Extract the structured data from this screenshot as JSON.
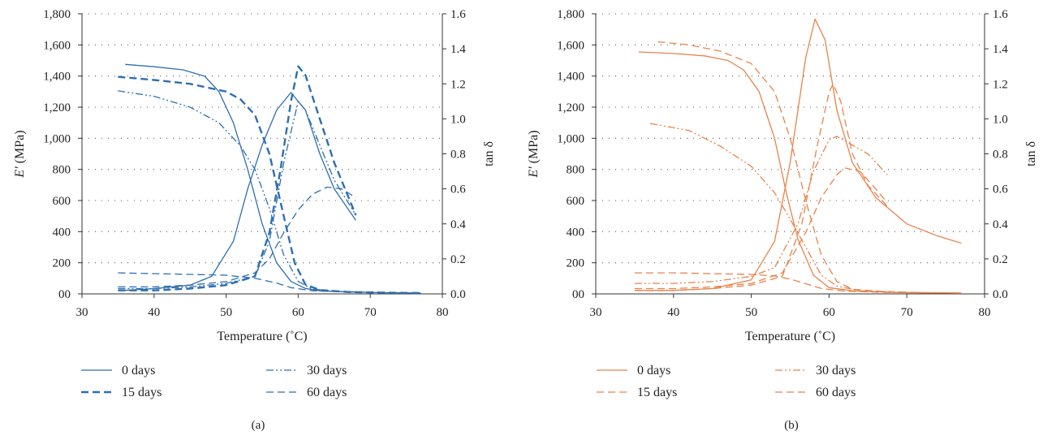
{
  "chart_data": [
    {
      "type": "line",
      "panel_label": "(a)",
      "color": "#2e6fb0",
      "xlabel": "Temperature (˚C)",
      "ylabel_main": "E′",
      "ylabel_unit": " (MPa)",
      "y2label": "tan δ",
      "xlim": [
        30,
        80
      ],
      "ylim": [
        0,
        1800
      ],
      "y2lim": [
        0,
        1.6
      ],
      "xticks": [
        "30",
        "40",
        "50",
        "60",
        "70",
        "80"
      ],
      "yticks": [
        "00",
        "200",
        "400",
        "600",
        "800",
        "1,000",
        "1,200",
        "1,400",
        "1,600",
        "1,800"
      ],
      "y2ticks": [
        "0.0",
        "0.2",
        "0.4",
        "0.6",
        "0.8",
        "1.0",
        "1.2",
        "1.4",
        "1.6"
      ],
      "grid": true,
      "legend_position": "bottom",
      "series": [
        {
          "name": "0 days",
          "style": "solid",
          "modulus": [
            [
              36,
              1475
            ],
            [
              40,
              1460
            ],
            [
              44,
              1440
            ],
            [
              47,
              1400
            ],
            [
              49,
              1300
            ],
            [
              51,
              1100
            ],
            [
              53,
              800
            ],
            [
              55,
              450
            ],
            [
              57,
              200
            ],
            [
              59,
              80
            ],
            [
              61,
              35
            ],
            [
              63,
              20
            ],
            [
              67,
              12
            ],
            [
              72,
              8
            ],
            [
              77,
              5
            ]
          ],
          "tan_delta": [
            [
              36,
              0.02
            ],
            [
              40,
              0.03
            ],
            [
              45,
              0.05
            ],
            [
              48,
              0.1
            ],
            [
              51,
              0.3
            ],
            [
              53,
              0.6
            ],
            [
              55,
              0.85
            ],
            [
              57,
              1.05
            ],
            [
              59,
              1.15
            ],
            [
              61,
              1.05
            ],
            [
              63,
              0.8
            ],
            [
              65,
              0.6
            ],
            [
              68,
              0.42
            ]
          ]
        },
        {
          "name": "15 days",
          "style": "dash-thick",
          "modulus": [
            [
              35,
              1395
            ],
            [
              40,
              1375
            ],
            [
              45,
              1350
            ],
            [
              48,
              1320
            ],
            [
              50,
              1300
            ],
            [
              52,
              1250
            ],
            [
              54,
              1150
            ],
            [
              56,
              900
            ],
            [
              58,
              500
            ],
            [
              59.5,
              200
            ],
            [
              61,
              60
            ],
            [
              63,
              25
            ],
            [
              67,
              12
            ],
            [
              72,
              8
            ],
            [
              77,
              5
            ]
          ],
          "tan_delta": [
            [
              35,
              0.02
            ],
            [
              40,
              0.02
            ],
            [
              45,
              0.03
            ],
            [
              50,
              0.05
            ],
            [
              54,
              0.1
            ],
            [
              56,
              0.35
            ],
            [
              57.5,
              0.7
            ],
            [
              59,
              1.1
            ],
            [
              60,
              1.3
            ],
            [
              61,
              1.25
            ],
            [
              63,
              1.0
            ],
            [
              65,
              0.75
            ],
            [
              68,
              0.45
            ]
          ]
        },
        {
          "name": "30 days",
          "style": "dashdot",
          "modulus": [
            [
              35,
              1305
            ],
            [
              40,
              1270
            ],
            [
              45,
              1200
            ],
            [
              49,
              1100
            ],
            [
              52,
              950
            ],
            [
              54,
              800
            ],
            [
              56,
              550
            ],
            [
              58,
              250
            ],
            [
              60,
              80
            ],
            [
              62,
              30
            ],
            [
              66,
              15
            ],
            [
              72,
              8
            ],
            [
              77,
              5
            ]
          ],
          "tan_delta": [
            [
              35,
              0.03
            ],
            [
              40,
              0.03
            ],
            [
              45,
              0.04
            ],
            [
              50,
              0.06
            ],
            [
              54,
              0.1
            ],
            [
              56,
              0.3
            ],
            [
              58,
              0.75
            ],
            [
              60,
              1.1
            ],
            [
              61,
              1.05
            ],
            [
              63,
              0.85
            ],
            [
              65,
              0.65
            ],
            [
              68,
              0.45
            ]
          ]
        },
        {
          "name": "60 days",
          "style": "dash-thin",
          "modulus": [
            [
              35,
              135
            ],
            [
              40,
              130
            ],
            [
              45,
              125
            ],
            [
              50,
              120
            ],
            [
              54,
              100
            ],
            [
              57,
              70
            ],
            [
              59,
              40
            ],
            [
              62,
              20
            ],
            [
              67,
              12
            ],
            [
              72,
              8
            ],
            [
              77,
              5
            ]
          ],
          "tan_delta": [
            [
              35,
              0.04
            ],
            [
              40,
              0.04
            ],
            [
              45,
              0.05
            ],
            [
              50,
              0.07
            ],
            [
              54,
              0.12
            ],
            [
              56,
              0.2
            ],
            [
              58,
              0.35
            ],
            [
              60,
              0.48
            ],
            [
              62,
              0.57
            ],
            [
              64,
              0.61
            ],
            [
              66,
              0.6
            ],
            [
              68,
              0.55
            ]
          ]
        }
      ],
      "legend": [
        "0 days",
        "15 days",
        "30 days",
        "60 days"
      ]
    },
    {
      "type": "line",
      "panel_label": "(b)",
      "color": "#e8834a",
      "xlabel": "Temperature (˚C)",
      "ylabel_main": "E′",
      "ylabel_unit": " (MPa)",
      "y2label": "tan δ",
      "xlim": [
        30,
        80
      ],
      "ylim": [
        0,
        1800
      ],
      "y2lim": [
        0,
        1.6
      ],
      "xticks": [
        "30",
        "40",
        "50",
        "60",
        "70",
        "80"
      ],
      "yticks": [
        "00",
        "200",
        "400",
        "600",
        "800",
        "1,000",
        "1,200",
        "1,400",
        "1,600",
        "1,800"
      ],
      "y2ticks": [
        "0.0",
        "0.2",
        "0.4",
        "0.6",
        "0.8",
        "1.0",
        "1.2",
        "1.4",
        "1.6"
      ],
      "grid": true,
      "legend_position": "bottom",
      "series": [
        {
          "name": "0 days",
          "style": "solid",
          "modulus": [
            [
              35.5,
              1555
            ],
            [
              40,
              1545
            ],
            [
              44,
              1530
            ],
            [
              47,
              1500
            ],
            [
              49,
              1440
            ],
            [
              51,
              1300
            ],
            [
              53,
              1000
            ],
            [
              54.5,
              650
            ],
            [
              56,
              350
            ],
            [
              58,
              120
            ],
            [
              60,
              40
            ],
            [
              63,
              20
            ],
            [
              68,
              10
            ],
            [
              72,
              7
            ],
            [
              77,
              5
            ]
          ],
          "tan_delta": [
            [
              35,
              0.02
            ],
            [
              40,
              0.02
            ],
            [
              45,
              0.03
            ],
            [
              50,
              0.08
            ],
            [
              53,
              0.3
            ],
            [
              55,
              0.75
            ],
            [
              57,
              1.35
            ],
            [
              58.2,
              1.57
            ],
            [
              59.5,
              1.45
            ],
            [
              61,
              1.05
            ],
            [
              63,
              0.75
            ],
            [
              66,
              0.55
            ],
            [
              70,
              0.4
            ],
            [
              74,
              0.33
            ],
            [
              77,
              0.29
            ]
          ]
        },
        {
          "name": "15 days",
          "style": "dash-thin",
          "modulus": [
            [
              38,
              1620
            ],
            [
              42,
              1600
            ],
            [
              46,
              1560
            ],
            [
              50,
              1480
            ],
            [
              53,
              1300
            ],
            [
              55,
              1000
            ],
            [
              57,
              600
            ],
            [
              59,
              250
            ],
            [
              61,
              80
            ],
            [
              63,
              30
            ],
            [
              67,
              15
            ],
            [
              72,
              8
            ],
            [
              77,
              5
            ]
          ],
          "tan_delta": [
            [
              35,
              0.02
            ],
            [
              40,
              0.02
            ],
            [
              45,
              0.03
            ],
            [
              50,
              0.05
            ],
            [
              54,
              0.1
            ],
            [
              56.5,
              0.4
            ],
            [
              58.5,
              0.85
            ],
            [
              60,
              1.15
            ],
            [
              60.5,
              1.2
            ],
            [
              61.5,
              1.1
            ],
            [
              63,
              0.8
            ],
            [
              65,
              0.62
            ],
            [
              67.5,
              0.5
            ]
          ]
        },
        {
          "name": "30 days",
          "style": "dashdot",
          "modulus": [
            [
              37,
              1095
            ],
            [
              42,
              1050
            ],
            [
              46,
              950
            ],
            [
              50,
              820
            ],
            [
              53,
              650
            ],
            [
              55,
              480
            ],
            [
              57,
              300
            ],
            [
              59,
              120
            ],
            [
              61,
              50
            ],
            [
              64,
              20
            ],
            [
              70,
              10
            ],
            [
              77,
              5
            ]
          ],
          "tan_delta": [
            [
              35,
              0.06
            ],
            [
              40,
              0.06
            ],
            [
              45,
              0.07
            ],
            [
              50,
              0.1
            ],
            [
              53,
              0.15
            ],
            [
              56,
              0.4
            ],
            [
              58,
              0.7
            ],
            [
              60,
              0.88
            ],
            [
              61,
              0.9
            ],
            [
              63,
              0.85
            ],
            [
              65,
              0.8
            ],
            [
              67.5,
              0.68
            ]
          ]
        },
        {
          "name": "60 days",
          "style": "dash-thin",
          "modulus": [
            [
              35,
              135
            ],
            [
              40,
              135
            ],
            [
              45,
              130
            ],
            [
              50,
              125
            ],
            [
              53,
              115
            ],
            [
              55,
              95
            ],
            [
              57,
              65
            ],
            [
              59,
              35
            ],
            [
              62,
              18
            ],
            [
              67,
              10
            ],
            [
              72,
              7
            ],
            [
              77,
              5
            ]
          ],
          "tan_delta": [
            [
              35,
              0.03
            ],
            [
              40,
              0.03
            ],
            [
              45,
              0.04
            ],
            [
              50,
              0.06
            ],
            [
              54,
              0.12
            ],
            [
              57,
              0.35
            ],
            [
              59,
              0.55
            ],
            [
              61,
              0.68
            ],
            [
              62,
              0.72
            ],
            [
              64,
              0.7
            ],
            [
              66,
              0.6
            ],
            [
              67.5,
              0.52
            ]
          ]
        }
      ],
      "legend": [
        "0 days",
        "15 days",
        "30 days",
        "60 days"
      ]
    }
  ]
}
